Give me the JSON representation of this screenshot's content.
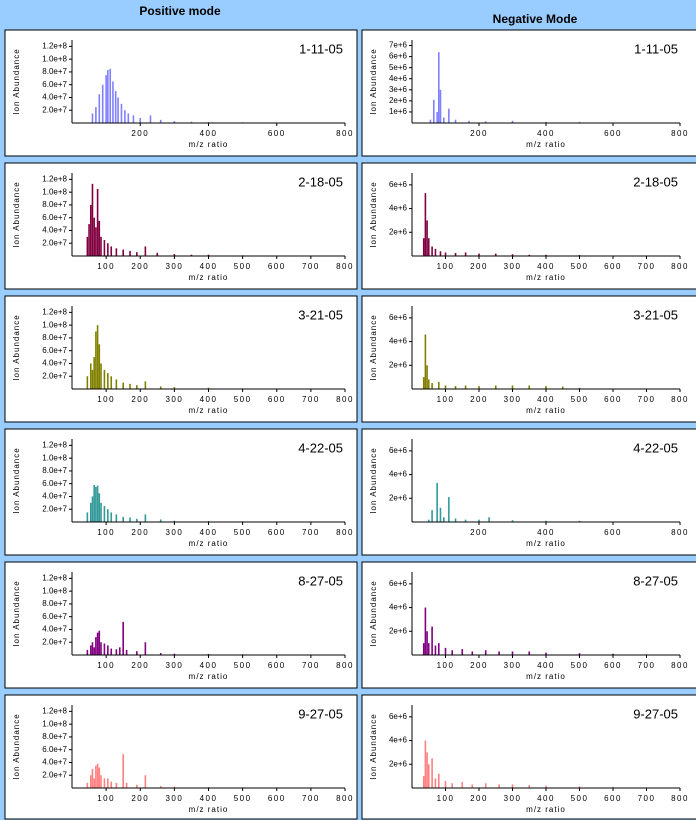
{
  "headers": [
    "Positive mode",
    "Negative Mode"
  ],
  "chart_data": [
    {
      "type": "stem",
      "title": "1-11-05",
      "x_label": "m/z ratio",
      "y_label": "Ion Abundance",
      "color": "#8080ff",
      "x": [
        60,
        70,
        80,
        90,
        100,
        105,
        112,
        120,
        128,
        135,
        145,
        155,
        165,
        180,
        200,
        230,
        260,
        300,
        350,
        400,
        500,
        600
      ],
      "values": [
        15000000.0,
        25000000.0,
        45000000.0,
        60000000.0,
        75000000.0,
        83000000.0,
        85000000.0,
        65000000.0,
        50000000.0,
        40000000.0,
        30000000.0,
        20000000.0,
        15000000.0,
        12000000.0,
        8000000.0,
        12000000.0,
        5000000.0,
        3000000.0,
        2000000.0,
        1500000.0,
        1000000.0,
        500000.0
      ],
      "xlim": [
        0,
        800
      ],
      "ylim": [
        0,
        130000000.0
      ],
      "xticks": [
        200,
        400,
        600,
        800
      ],
      "yticks": [
        {
          "value": 20000000.0,
          "label": "2.0e+7"
        },
        {
          "value": 40000000.0,
          "label": "4.0e+7"
        },
        {
          "value": 60000000.0,
          "label": "6.0e+7"
        },
        {
          "value": 80000000.0,
          "label": "8.0e+7"
        },
        {
          "value": 100000000.0,
          "label": "1.0e+8"
        },
        {
          "value": 120000000.0,
          "label": "1.2e+8"
        }
      ]
    },
    {
      "type": "stem",
      "title": "2-18-05",
      "x_label": "m/z ratio",
      "y_label": "Ion Abundance",
      "color": "#800040",
      "x": [
        45,
        50,
        55,
        60,
        65,
        70,
        75,
        80,
        85,
        95,
        105,
        115,
        130,
        150,
        170,
        190,
        215,
        250,
        300,
        350,
        400,
        500
      ],
      "values": [
        30000000.0,
        50000000.0,
        80000000.0,
        113000000.0,
        60000000.0,
        45000000.0,
        105000000.0,
        55000000.0,
        30000000.0,
        25000000.0,
        20000000.0,
        15000000.0,
        12000000.0,
        10000000.0,
        8000000.0,
        6000000.0,
        15000000.0,
        5000000.0,
        3000000.0,
        2000000.0,
        2000000.0,
        1000000.0
      ],
      "xlim": [
        0,
        800
      ],
      "ylim": [
        0,
        130000000.0
      ],
      "xticks": [
        100,
        200,
        300,
        400,
        500,
        600,
        700,
        800
      ],
      "yticks": [
        {
          "value": 20000000.0,
          "label": "2.0e+7"
        },
        {
          "value": 40000000.0,
          "label": "4.0e+7"
        },
        {
          "value": 60000000.0,
          "label": "6.0e+7"
        },
        {
          "value": 80000000.0,
          "label": "8.0e+7"
        },
        {
          "value": 100000000.0,
          "label": "1.0e+8"
        },
        {
          "value": 120000000.0,
          "label": "1.2e+8"
        }
      ]
    },
    {
      "type": "stem",
      "title": "3-21-05",
      "x_label": "m/z ratio",
      "y_label": "Ion Abundance",
      "color": "#808000",
      "x": [
        45,
        55,
        60,
        65,
        70,
        75,
        80,
        85,
        95,
        105,
        115,
        130,
        150,
        170,
        190,
        215,
        260,
        300,
        400,
        500
      ],
      "values": [
        20000000.0,
        40000000.0,
        30000000.0,
        50000000.0,
        90000000.0,
        100000000.0,
        70000000.0,
        40000000.0,
        30000000.0,
        25000000.0,
        20000000.0,
        15000000.0,
        10000000.0,
        8000000.0,
        6000000.0,
        12000000.0,
        4000000.0,
        3000000.0,
        2000000.0,
        1000000.0
      ],
      "xlim": [
        0,
        800
      ],
      "ylim": [
        0,
        130000000.0
      ],
      "xticks": [
        100,
        200,
        300,
        400,
        500,
        600,
        700,
        800
      ],
      "yticks": [
        {
          "value": 20000000.0,
          "label": "2.0e+7"
        },
        {
          "value": 40000000.0,
          "label": "4.0e+7"
        },
        {
          "value": 60000000.0,
          "label": "6.0e+7"
        },
        {
          "value": 80000000.0,
          "label": "8.0e+7"
        },
        {
          "value": 100000000.0,
          "label": "1.0e+8"
        },
        {
          "value": 120000000.0,
          "label": "1.2e+8"
        }
      ]
    },
    {
      "type": "stem",
      "title": "4-22-05",
      "x_label": "m/z ratio",
      "y_label": "Ion Abundance",
      "color": "#339999",
      "x": [
        45,
        55,
        60,
        65,
        70,
        75,
        80,
        85,
        95,
        105,
        115,
        130,
        150,
        170,
        190,
        215,
        260,
        300,
        400,
        500
      ],
      "values": [
        15000000.0,
        30000000.0,
        40000000.0,
        58000000.0,
        55000000.0,
        57000000.0,
        45000000.0,
        30000000.0,
        25000000.0,
        20000000.0,
        15000000.0,
        12000000.0,
        8000000.0,
        7000000.0,
        5000000.0,
        12000000.0,
        4000000.0,
        2000000.0,
        1500000.0,
        1000000.0
      ],
      "xlim": [
        0,
        800
      ],
      "ylim": [
        0,
        130000000.0
      ],
      "xticks": [
        100,
        200,
        300,
        400,
        500,
        600,
        700,
        800
      ],
      "yticks": [
        {
          "value": 20000000.0,
          "label": "2.0e+7"
        },
        {
          "value": 40000000.0,
          "label": "4.0e+7"
        },
        {
          "value": 60000000.0,
          "label": "6.0e+7"
        },
        {
          "value": 80000000.0,
          "label": "8.0e+7"
        },
        {
          "value": 100000000.0,
          "label": "1.0e+8"
        },
        {
          "value": 120000000.0,
          "label": "1.2e+8"
        }
      ]
    },
    {
      "type": "stem",
      "title": "8-27-05",
      "x_label": "m/z ratio",
      "y_label": "Ion Abundance",
      "color": "#800080",
      "x": [
        45,
        55,
        60,
        65,
        70,
        75,
        80,
        85,
        95,
        105,
        115,
        130,
        140,
        150,
        160,
        190,
        215,
        260,
        300,
        400,
        500
      ],
      "values": [
        8000000.0,
        15000000.0,
        20000000.0,
        12000000.0,
        28000000.0,
        35000000.0,
        38000000.0,
        20000000.0,
        18000000.0,
        15000000.0,
        10000000.0,
        9000000.0,
        12000000.0,
        52000000.0,
        8000000.0,
        6000000.0,
        20000000.0,
        3000000.0,
        2000000.0,
        1500000.0,
        1000000.0
      ],
      "xlim": [
        0,
        800
      ],
      "ylim": [
        0,
        130000000.0
      ],
      "xticks": [
        100,
        200,
        300,
        400,
        500,
        600,
        700,
        800
      ],
      "yticks": [
        {
          "value": 20000000.0,
          "label": "2.0e+7"
        },
        {
          "value": 40000000.0,
          "label": "4.0e+7"
        },
        {
          "value": 60000000.0,
          "label": "6.0e+7"
        },
        {
          "value": 80000000.0,
          "label": "8.0e+7"
        },
        {
          "value": 100000000.0,
          "label": "1.0e+8"
        },
        {
          "value": 120000000.0,
          "label": "1.2e+8"
        }
      ]
    },
    {
      "type": "stem",
      "title": "9-27-05",
      "x_label": "m/z ratio",
      "y_label": "Ion Abundance",
      "color": "#ff8080",
      "x": [
        45,
        55,
        60,
        65,
        70,
        75,
        80,
        85,
        95,
        105,
        115,
        130,
        150,
        160,
        190,
        215,
        260,
        300,
        400,
        500
      ],
      "values": [
        8000000.0,
        20000000.0,
        30000000.0,
        15000000.0,
        35000000.0,
        38000000.0,
        32000000.0,
        20000000.0,
        15000000.0,
        15000000.0,
        10000000.0,
        8000000.0,
        53000000.0,
        8000000.0,
        5000000.0,
        20000000.0,
        3000000.0,
        2000000.0,
        1500000.0,
        1000000.0
      ],
      "xlim": [
        0,
        800
      ],
      "ylim": [
        0,
        130000000.0
      ],
      "xticks": [
        100,
        200,
        300,
        400,
        500,
        600,
        700,
        800
      ],
      "yticks": [
        {
          "value": 20000000.0,
          "label": "2.0e+7"
        },
        {
          "value": 40000000.0,
          "label": "4.0e+7"
        },
        {
          "value": 60000000.0,
          "label": "6.0e+7"
        },
        {
          "value": 80000000.0,
          "label": "8.0e+7"
        },
        {
          "value": 100000000.0,
          "label": "1.0e+8"
        },
        {
          "value": 120000000.0,
          "label": "1.2e+8"
        }
      ]
    },
    {
      "type": "stem",
      "title": "1-11-05",
      "x_label": "m/z ratio",
      "y_label": "Ion Abundance",
      "color": "#8080ff",
      "x": [
        55,
        65,
        75,
        80,
        85,
        95,
        110,
        130,
        170,
        220,
        300,
        400,
        500
      ],
      "values": [
        300000.0,
        2100000.0,
        1000000.0,
        6400000.0,
        3000000.0,
        500000.0,
        1300000.0,
        300000.0,
        200000.0,
        150000.0,
        200000.0,
        100000.0,
        100000.0
      ],
      "xlim": [
        0,
        800
      ],
      "ylim": [
        0,
        7500000.0
      ],
      "xticks": [
        200,
        400,
        600,
        800
      ],
      "yticks": [
        {
          "value": 1000000.0,
          "label": "1e+6"
        },
        {
          "value": 2000000.0,
          "label": "2e+6"
        },
        {
          "value": 3000000.0,
          "label": "3e+6"
        },
        {
          "value": 4000000.0,
          "label": "4e+6"
        },
        {
          "value": 5000000.0,
          "label": "5e+6"
        },
        {
          "value": 6000000.0,
          "label": "6e+6"
        },
        {
          "value": 7000000.0,
          "label": "7e+6"
        }
      ]
    },
    {
      "type": "stem",
      "title": "2-18-05",
      "x_label": "m/z ratio",
      "y_label": "Ion Abundance",
      "color": "#800040",
      "x": [
        35,
        40,
        45,
        50,
        60,
        70,
        85,
        100,
        130,
        160,
        200,
        250,
        300,
        350,
        400,
        500
      ],
      "values": [
        1500000.0,
        5300000.0,
        3000000.0,
        1500000.0,
        800000.0,
        600000.0,
        400000.0,
        300000.0,
        250000.0,
        300000.0,
        200000.0,
        200000.0,
        150000.0,
        100000.0,
        100000.0,
        80000.0
      ],
      "xlim": [
        0,
        800
      ],
      "ylim": [
        0,
        7000000.0
      ],
      "xticks": [
        100,
        200,
        300,
        400,
        500,
        600,
        700,
        800
      ],
      "yticks": [
        {
          "value": 2000000.0,
          "label": "2e+6"
        },
        {
          "value": 4000000.0,
          "label": "4e+6"
        },
        {
          "value": 6000000.0,
          "label": "6e+6"
        }
      ]
    },
    {
      "type": "stem",
      "title": "3-21-05",
      "x_label": "m/z ratio",
      "y_label": "Ion Abundance",
      "color": "#808000",
      "x": [
        35,
        40,
        45,
        50,
        60,
        80,
        100,
        130,
        160,
        200,
        250,
        300,
        350,
        400,
        450,
        500
      ],
      "values": [
        1000000.0,
        4600000.0,
        2000000.0,
        800000.0,
        500000.0,
        600000.0,
        300000.0,
        250000.0,
        300000.0,
        250000.0,
        300000.0,
        300000.0,
        300000.0,
        250000.0,
        200000.0,
        100000.0
      ],
      "xlim": [
        0,
        800
      ],
      "ylim": [
        0,
        7000000.0
      ],
      "xticks": [
        100,
        200,
        300,
        400,
        500,
        600,
        700,
        800
      ],
      "yticks": [
        {
          "value": 2000000.0,
          "label": "2e+6"
        },
        {
          "value": 4000000.0,
          "label": "4e+6"
        },
        {
          "value": 6000000.0,
          "label": "6e+6"
        }
      ]
    },
    {
      "type": "stem",
      "title": "4-22-05",
      "x_label": "m/z ratio",
      "y_label": "Ion Abundance",
      "color": "#339999",
      "x": [
        50,
        60,
        75,
        85,
        95,
        110,
        130,
        160,
        200,
        230,
        300,
        400,
        500
      ],
      "values": [
        200000.0,
        1000000.0,
        3300000.0,
        1200000.0,
        400000.0,
        2100000.0,
        300000.0,
        200000.0,
        200000.0,
        400000.0,
        150000.0,
        100000.0,
        100000.0
      ],
      "xlim": [
        0,
        800
      ],
      "ylim": [
        0,
        7000000.0
      ],
      "xticks": [
        200,
        400,
        600,
        800
      ],
      "yticks": [
        {
          "value": 2000000.0,
          "label": "2e+6"
        },
        {
          "value": 4000000.0,
          "label": "4e+6"
        },
        {
          "value": 6000000.0,
          "label": "6e+6"
        }
      ]
    },
    {
      "type": "stem",
      "title": "8-27-05",
      "x_label": "m/z ratio",
      "y_label": "Ion Abundance",
      "color": "#800080",
      "x": [
        35,
        40,
        45,
        50,
        60,
        70,
        80,
        100,
        120,
        150,
        180,
        220,
        260,
        300,
        350,
        400,
        500,
        600,
        700
      ],
      "values": [
        1000000.0,
        4000000.0,
        2000000.0,
        1000000.0,
        2400000.0,
        800000.0,
        1000000.0,
        600000.0,
        400000.0,
        500000.0,
        300000.0,
        400000.0,
        300000.0,
        300000.0,
        300000.0,
        200000.0,
        150000.0,
        100000.0,
        50000.0
      ],
      "xlim": [
        0,
        800
      ],
      "ylim": [
        0,
        7000000.0
      ],
      "xticks": [
        100,
        200,
        300,
        400,
        500,
        600,
        700,
        800
      ],
      "yticks": [
        {
          "value": 2000000.0,
          "label": "2e+6"
        },
        {
          "value": 4000000.0,
          "label": "4e+6"
        },
        {
          "value": 6000000.0,
          "label": "6e+6"
        }
      ]
    },
    {
      "type": "stem",
      "title": "9-27-05",
      "x_label": "m/z ratio",
      "y_label": "Ion Abundance",
      "color": "#ff8080",
      "x": [
        35,
        40,
        45,
        50,
        60,
        70,
        80,
        100,
        120,
        150,
        180,
        220,
        260,
        300,
        350,
        400,
        500,
        600
      ],
      "values": [
        1000000.0,
        4000000.0,
        3000000.0,
        2000000.0,
        2500000.0,
        800000.0,
        1200000.0,
        600000.0,
        400000.0,
        500000.0,
        300000.0,
        400000.0,
        300000.0,
        300000.0,
        250000.0,
        200000.0,
        150000.0,
        100000.0
      ],
      "xlim": [
        0,
        800
      ],
      "ylim": [
        0,
        7000000.0
      ],
      "xticks": [
        100,
        200,
        300,
        400,
        500,
        600,
        700,
        800
      ],
      "yticks": [
        {
          "value": 2000000.0,
          "label": "2e+6"
        },
        {
          "value": 4000000.0,
          "label": "4e+6"
        },
        {
          "value": 6000000.0,
          "label": "6e+6"
        }
      ]
    }
  ]
}
